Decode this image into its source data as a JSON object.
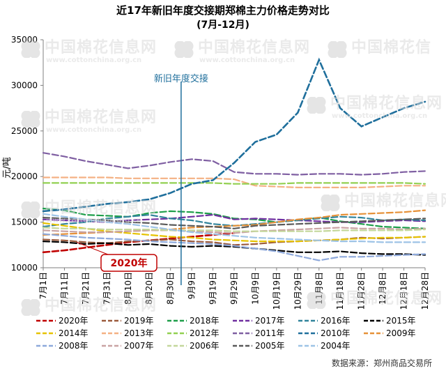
{
  "chart_data": {
    "type": "line",
    "title": "近17年新旧年度交接期郑棉主力价格走势对比",
    "subtitle": "(7月-12月)",
    "ylabel": "元/吨",
    "ylim": [
      10000,
      35000
    ],
    "yticks": [
      10000,
      15000,
      20000,
      25000,
      30000,
      35000
    ],
    "grid": false,
    "xticks": [
      "7月1日",
      "7月11日",
      "7月21日",
      "7月31日",
      "8月10日",
      "8月20日",
      "8月30日",
      "9月9日",
      "9月19日",
      "9月29日",
      "10月9日",
      "10月19日",
      "10月29日",
      "11月8日",
      "11月18日",
      "11月28日",
      "12月8日",
      "12月18日",
      "12月28日"
    ],
    "annotation_vertical": "新旧年度交接",
    "annotation_vertical_index": 6.5,
    "callout_label": "2020年",
    "source": "数据来源：郑州商品交易所",
    "legend_position": "bottom",
    "series": [
      {
        "name": "2020年",
        "color": "#c00000",
        "style": "dashed",
        "values": [
          11700,
          11900,
          12200,
          12500,
          12800,
          13000,
          13200,
          13400,
          13600,
          13800,
          null,
          null,
          null,
          null,
          null,
          null,
          null,
          null,
          null
        ]
      },
      {
        "name": "2019年",
        "color": "#9b5a3c",
        "style": "dashed",
        "values": [
          13100,
          13000,
          12800,
          12700,
          12900,
          13000,
          13100,
          12900,
          12800,
          12500,
          12600,
          12800,
          12900,
          13000,
          13100,
          13300,
          13200,
          13300,
          13400
        ]
      },
      {
        "name": "2018年",
        "color": "#1e9e4a",
        "style": "dashed",
        "values": [
          16500,
          16300,
          15800,
          15700,
          15600,
          16000,
          16200,
          16100,
          15900,
          15400,
          15300,
          15000,
          15200,
          15500,
          15100,
          14800,
          14500,
          14400,
          14300
        ]
      },
      {
        "name": "2017年",
        "color": "#7030a0",
        "style": "dashed",
        "values": [
          15300,
          15200,
          15100,
          15000,
          15200,
          15300,
          15400,
          15600,
          15800,
          15300,
          15400,
          15300,
          15200,
          15100,
          15000,
          15000,
          15100,
          15200,
          15100
        ]
      },
      {
        "name": "2016年",
        "color": "#31849b",
        "style": "dashed",
        "values": [
          14500,
          14800,
          15000,
          15400,
          15600,
          15800,
          15400,
          15200,
          14800,
          14600,
          14800,
          15000,
          15200,
          15400,
          15600,
          15500,
          15200,
          15300,
          15200
        ]
      },
      {
        "name": "2015年",
        "color": "#000000",
        "style": "dashed",
        "values": [
          12900,
          12800,
          12600,
          12700,
          12500,
          12600,
          12400,
          12300,
          12400,
          12300,
          12100,
          11900,
          11700,
          11700,
          11800,
          11600,
          11500,
          11500,
          11400
        ]
      },
      {
        "name": "2014年",
        "color": "#e6c200",
        "style": "dashed",
        "values": [
          14900,
          14600,
          14300,
          14000,
          13800,
          13600,
          13400,
          13300,
          13100,
          13000,
          12900,
          12900,
          12900,
          13000,
          13100,
          13200,
          13300,
          13300,
          13400
        ]
      },
      {
        "name": "2013年",
        "color": "#f4b183",
        "style": "dashed",
        "values": [
          19900,
          19900,
          19900,
          19900,
          19800,
          19800,
          19800,
          19800,
          19800,
          19700,
          19000,
          18900,
          18800,
          18800,
          18800,
          18800,
          18900,
          19000,
          19000
        ]
      },
      {
        "name": "2012年",
        "color": "#92d050",
        "style": "dashed",
        "values": [
          19300,
          19300,
          19300,
          19300,
          19300,
          19300,
          19300,
          19300,
          19300,
          19200,
          19200,
          19200,
          19300,
          19300,
          19300,
          19300,
          19300,
          19300,
          19200
        ]
      },
      {
        "name": "2011年",
        "color": "#7f5fa2",
        "style": "dashed",
        "values": [
          22600,
          22200,
          21700,
          21300,
          20900,
          21200,
          21600,
          21900,
          21700,
          20500,
          20300,
          20300,
          20200,
          20300,
          20300,
          20200,
          20300,
          20500,
          20600
        ]
      },
      {
        "name": "2010年",
        "color": "#1f6f9c",
        "style": "dashed",
        "values": [
          16200,
          16400,
          16700,
          17000,
          17200,
          17500,
          18200,
          19200,
          19600,
          21500,
          23800,
          24600,
          27000,
          32800,
          27500,
          25500,
          26500,
          27500,
          28200
        ]
      },
      {
        "name": "2009年",
        "color": "#e69138",
        "style": "dashed",
        "values": [
          13600,
          13700,
          13800,
          13900,
          14000,
          14100,
          14200,
          14400,
          14500,
          14600,
          14700,
          15000,
          15300,
          15500,
          15800,
          15900,
          16000,
          16100,
          16300
        ]
      },
      {
        "name": "2008年",
        "color": "#8ea9db",
        "style": "dashed",
        "values": [
          13700,
          13500,
          13300,
          13200,
          13100,
          12900,
          12800,
          12700,
          12600,
          12400,
          12100,
          11800,
          11300,
          10800,
          11200,
          11200,
          11300,
          11400,
          11500
        ]
      },
      {
        "name": "2007年",
        "color": "#c9a3a3",
        "style": "dashed",
        "values": [
          14100,
          14000,
          13900,
          13900,
          14000,
          14100,
          14100,
          14000,
          13900,
          13800,
          14000,
          14100,
          14200,
          14300,
          14400,
          14300,
          14300,
          14200,
          14300
        ]
      },
      {
        "name": "2006年",
        "color": "#c4d79b",
        "style": "dashed",
        "values": [
          14400,
          14300,
          14300,
          14200,
          14200,
          14200,
          14100,
          14100,
          14100,
          14000,
          14000,
          14000,
          14000,
          14000,
          14100,
          14100,
          14100,
          14100,
          14200
        ]
      },
      {
        "name": "2005年",
        "color": "#595959",
        "style": "dashed",
        "values": [
          15500,
          15400,
          15300,
          15200,
          15000,
          14900,
          14700,
          14600,
          14500,
          14300,
          14600,
          14700,
          14800,
          14900,
          15000,
          15100,
          15200,
          15300,
          15400
        ]
      },
      {
        "name": "2004年",
        "color": "#9dc3e6",
        "style": "dashed",
        "values": [
          15900,
          15600,
          15300,
          15000,
          14800,
          14500,
          14200,
          13900,
          13700,
          13500,
          13300,
          13200,
          13100,
          13000,
          12900,
          12900,
          12800,
          12800,
          12800
        ]
      }
    ]
  }
}
